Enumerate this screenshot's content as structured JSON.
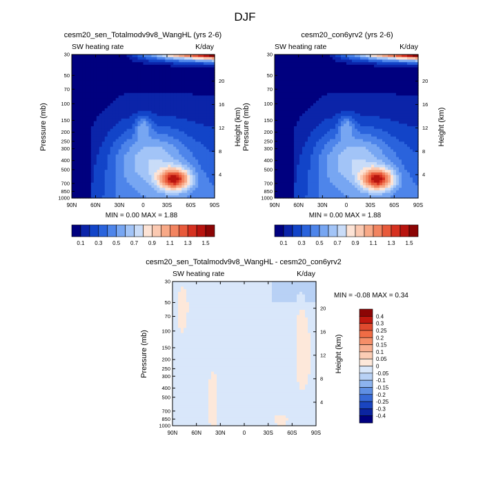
{
  "figure_title": "DJF",
  "panels": [
    {
      "title": "cesm20_sen_Totalmodv9v8_WangHL (yrs 2-6)",
      "left_label": "SW heating rate",
      "right_label": "K/day",
      "ylabel": "Pressure (mb)",
      "y2label": "Height (km)",
      "stats": "MIN =   0.00   MAX =    1.88"
    },
    {
      "title": "cesm20_con6yrv2 (yrs 2-6)",
      "left_label": "SW heating rate",
      "right_label": "K/day",
      "ylabel": "Pressure (mb)",
      "y2label": "Height (km)",
      "stats": "MIN =   0.00   MAX =    1.88"
    },
    {
      "title": "cesm20_sen_Totalmodv9v8_WangHL - cesm20_con6yrv2",
      "left_label": "SW heating rate",
      "right_label": "K/day",
      "ylabel": "Pressure (mb)",
      "y2label": "Height (km)",
      "stats": "MIN =  -0.08   MAX =    0.34"
    }
  ],
  "chart_data": [
    {
      "type": "heatmap",
      "title": "cesm20_sen_Totalmodv9v8_WangHL (yrs 2-6)",
      "xlabel": "",
      "ylabel": "Pressure (mb)",
      "y2label": "Height (km)",
      "x_ticks": [
        "90N",
        "60N",
        "30N",
        "0",
        "30S",
        "60S",
        "90S"
      ],
      "y_ticks": [
        "30",
        "50",
        "70",
        "100",
        "150",
        "200",
        "250",
        "300",
        "400",
        "500",
        "700",
        "850",
        "1000"
      ],
      "y2_ticks": [
        "20",
        "16",
        "12",
        "8",
        "4"
      ],
      "colorbar_levels": [
        "0.1",
        "0.3",
        "0.5",
        "0.7",
        "0.9",
        "1.1",
        "1.3",
        "1.5"
      ],
      "colors": [
        "#00007f",
        "#0b24a9",
        "#1244c8",
        "#2a63dc",
        "#4e85ea",
        "#77a6f2",
        "#a2c4f7",
        "#c9dcf8",
        "#fde3d5",
        "#fbc9b1",
        "#f8a987",
        "#f28460",
        "#e85a3b",
        "#d63120",
        "#b8140f",
        "#8c0505"
      ],
      "min": 0.0,
      "max": 1.88
    },
    {
      "type": "heatmap",
      "title": "cesm20_con6yrv2 (yrs 2-6)",
      "xlabel": "",
      "ylabel": "Pressure (mb)",
      "y2label": "Height (km)",
      "x_ticks": [
        "90N",
        "60N",
        "30N",
        "0",
        "30S",
        "60S",
        "90S"
      ],
      "y_ticks": [
        "30",
        "50",
        "70",
        "100",
        "150",
        "200",
        "250",
        "300",
        "400",
        "500",
        "700",
        "850",
        "1000"
      ],
      "y2_ticks": [
        "20",
        "16",
        "12",
        "8",
        "4"
      ],
      "colorbar_levels": [
        "0.1",
        "0.3",
        "0.5",
        "0.7",
        "0.9",
        "1.1",
        "1.3",
        "1.5"
      ],
      "colors": [
        "#00007f",
        "#0b24a9",
        "#1244c8",
        "#2a63dc",
        "#4e85ea",
        "#77a6f2",
        "#a2c4f7",
        "#c9dcf8",
        "#fde3d5",
        "#fbc9b1",
        "#f8a987",
        "#f28460",
        "#e85a3b",
        "#d63120",
        "#b8140f",
        "#8c0505"
      ],
      "min": 0.0,
      "max": 1.88
    },
    {
      "type": "heatmap",
      "title": "cesm20_sen_Totalmodv9v8_WangHL - cesm20_con6yrv2",
      "xlabel": "",
      "ylabel": "Pressure (mb)",
      "y2label": "Height (km)",
      "x_ticks": [
        "90N",
        "60N",
        "30N",
        "0",
        "30S",
        "60S",
        "90S"
      ],
      "y_ticks": [
        "30",
        "50",
        "70",
        "100",
        "150",
        "200",
        "250",
        "300",
        "400",
        "500",
        "700",
        "850",
        "1000"
      ],
      "y2_ticks": [
        "20",
        "16",
        "12",
        "8",
        "4"
      ],
      "colorbar_levels": [
        "0.4",
        "0.3",
        "0.25",
        "0.2",
        "0.15",
        "0.1",
        "0.05",
        "0",
        "-0.05",
        "-0.1",
        "-0.15",
        "-0.2",
        "-0.25",
        "-0.3",
        "-0.4"
      ],
      "colors": [
        "#8c0505",
        "#c0180f",
        "#e04a2e",
        "#f06c45",
        "#f58e68",
        "#f8ae8f",
        "#fbcdb5",
        "#fde8da",
        "#d9e7fa",
        "#b8d1f5",
        "#8db3ee",
        "#5f8fe3",
        "#3769d6",
        "#1a45c0",
        "#0b24a0",
        "#00007f"
      ],
      "min": -0.08,
      "max": 0.34
    }
  ]
}
